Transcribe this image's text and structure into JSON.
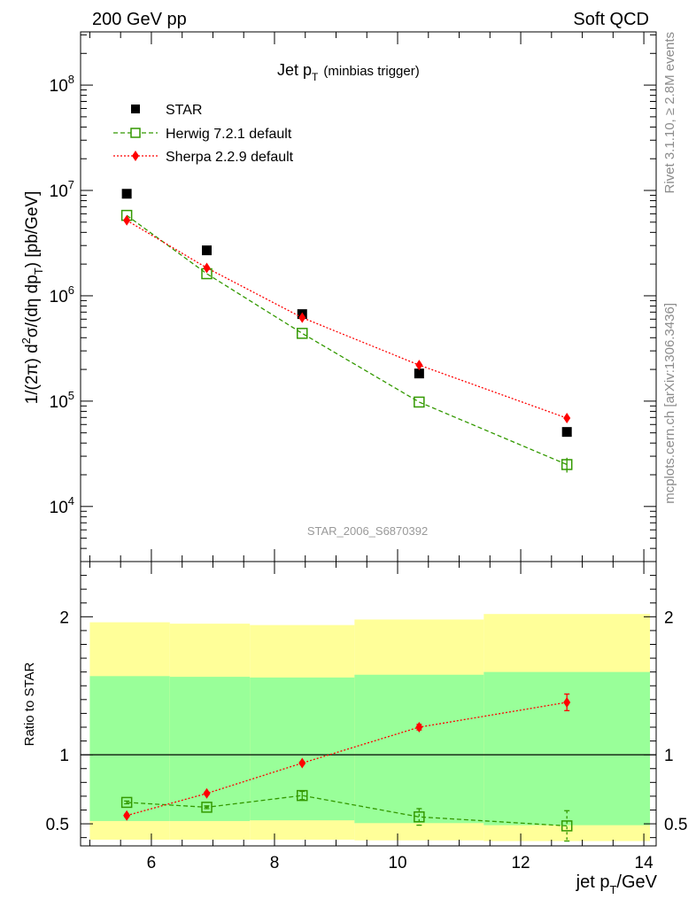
{
  "header": {
    "left": "200 GeV pp",
    "right": "Soft QCD"
  },
  "side_labels": {
    "rivet": "Rivet 3.1.10, ≥ 2.8M events",
    "mcplots": "mcplots.cern.ch [arXiv:1306.3436]"
  },
  "colors": {
    "star": "#000000",
    "herwig": "#339900",
    "sherpa": "#ff0000",
    "band_outer": "#ffff99",
    "band_inner": "#99ff99"
  },
  "chart_data": [
    {
      "type": "scatter",
      "scale": "log",
      "title_main": "Jet p",
      "title_sub": "T",
      "title_note": "(minbias trigger)",
      "ylabel": "1/(2π) d²σ/(dη dp_T) [pb/GeV]",
      "xlim": [
        4.85,
        14.2
      ],
      "ylim": [
        3000,
        320000000.0
      ],
      "y_ticks": [
        {
          "value": 10000,
          "mantissa": "10",
          "exponent": "4"
        },
        {
          "value": 100000,
          "mantissa": "10",
          "exponent": "5"
        },
        {
          "value": 1000000,
          "mantissa": "10",
          "exponent": "6"
        },
        {
          "value": 10000000,
          "mantissa": "10",
          "exponent": "7"
        },
        {
          "value": 100000000,
          "mantissa": "10",
          "exponent": "8"
        }
      ],
      "watermark": "STAR_2006_S6870392",
      "legend": [
        {
          "key": "star",
          "label": "STAR"
        },
        {
          "key": "herwig",
          "label": "Herwig 7.2.1 default"
        },
        {
          "key": "sherpa",
          "label": "Sherpa 2.2.9 default"
        }
      ],
      "series": [
        {
          "name": "STAR",
          "key": "star",
          "x": [
            5.6,
            6.9,
            8.45,
            10.35,
            12.75
          ],
          "y": [
            9300000,
            2700000,
            670000,
            183000,
            51000
          ]
        },
        {
          "name": "Herwig 7.2.1 default",
          "key": "herwig",
          "x": [
            5.6,
            6.9,
            8.45,
            10.35,
            12.75
          ],
          "y": [
            5800000,
            1620000,
            440000,
            98000,
            25000
          ],
          "yerr": [
            0,
            0,
            0,
            0,
            4000
          ]
        },
        {
          "name": "Sherpa 2.2.9 default",
          "key": "sherpa",
          "x": [
            5.6,
            6.9,
            8.45,
            10.35,
            12.75
          ],
          "y": [
            5200000,
            1840000,
            620000,
            220000,
            69000
          ]
        }
      ]
    },
    {
      "type": "scatter",
      "scale": "linear",
      "ylabel": "Ratio to STAR",
      "xlabel": "jet p",
      "xlabel_sub": "T",
      "xlabel_unit": "/GeV",
      "xlim": [
        4.85,
        14.2
      ],
      "ylim": [
        0.34,
        2.4
      ],
      "x_ticks": [
        6,
        8,
        10,
        12,
        14
      ],
      "y_ticks": [
        0.5,
        1,
        2
      ],
      "y_tick_labels": [
        "0.5",
        "1",
        "2"
      ],
      "reference_line": 1,
      "bands": [
        {
          "x_lo": 5.0,
          "x_hi": 6.3,
          "outer_lo": 0.385,
          "outer_hi": 1.96,
          "inner_lo": 0.52,
          "inner_hi": 1.57
        },
        {
          "x_lo": 6.3,
          "x_hi": 7.6,
          "outer_lo": 0.385,
          "outer_hi": 1.95,
          "inner_lo": 0.52,
          "inner_hi": 1.565
        },
        {
          "x_lo": 7.6,
          "x_hi": 9.3,
          "outer_lo": 0.385,
          "outer_hi": 1.94,
          "inner_lo": 0.525,
          "inner_hi": 1.56
        },
        {
          "x_lo": 9.3,
          "x_hi": 11.4,
          "outer_lo": 0.38,
          "outer_hi": 1.98,
          "inner_lo": 0.505,
          "inner_hi": 1.58
        },
        {
          "x_lo": 11.4,
          "x_hi": 14.1,
          "outer_lo": 0.375,
          "outer_hi": 2.02,
          "inner_lo": 0.49,
          "inner_hi": 1.6
        }
      ],
      "series": [
        {
          "name": "Herwig 7.2.1 default",
          "key": "herwig",
          "x": [
            5.6,
            6.9,
            8.45,
            10.35,
            12.75
          ],
          "y": [
            0.655,
            0.62,
            0.705,
            0.55,
            0.485
          ],
          "yerr": [
            0.01,
            0.01,
            0.03,
            0.06,
            0.11
          ]
        },
        {
          "name": "Sherpa 2.2.9 default",
          "key": "sherpa",
          "x": [
            5.6,
            6.9,
            8.45,
            10.35,
            12.75
          ],
          "y": [
            0.56,
            0.72,
            0.94,
            1.2,
            1.38
          ],
          "yerr": [
            0.01,
            0.01,
            0.01,
            0.02,
            0.06
          ]
        }
      ]
    }
  ]
}
